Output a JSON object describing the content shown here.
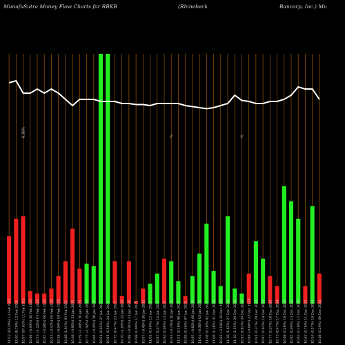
{
  "header": {
    "brand": "MunafaSutra  Money Flow  Charts for RBKB",
    "company_left": "(Rhinebeck",
    "company_right": "Bancorp,  Inc.) Mu"
  },
  "colors": {
    "background": "#000000",
    "gridline": "#a0560a",
    "up_bar": "#22ee22",
    "down_bar": "#ee2020",
    "price_line": "#ffffff",
    "text": "#cfcfcf"
  },
  "chart_data": {
    "type": "bar",
    "overlay": "line",
    "ylim": [
      0,
      100
    ],
    "price_ylim": [
      0,
      100
    ],
    "grid": "vertical",
    "categories": [
      "11.03 (10.29%) 13 Feb 2025",
      "12.00 (8.79%) 12 Feb 2025",
      "10.97 (97.93%) 11 Feb 2025",
      "10.66 (-0.93%) 10 Feb 2025",
      "10.53 (-1.12%) 07 Feb 2025",
      "10.65 (-0.28%) 06 Feb 2025",
      "10.53 (-0.47%) 05 Feb 2025",
      "10.58 (-0.94%) 04 Feb 2025",
      "10.68 (1.91%) 03 Feb 2025",
      "10.48 (-0.95%) 31 Jan 2025",
      "10.59 (-1.49%) 30 Jan 2025",
      "10.75 (-1.92%) 29 Jan 2025",
      "10.96 (-0.45%) 28 Jan 2025",
      "10.91 (0.92%) 27 Jan 2025",
      "10.81 (0.56%) 24 Jan 2025",
      "10.75 (0.47%) 23 Jan 2025",
      "10.70 (-1.65%) 22 Jan 2025",
      "10.88 (-0.91%) 21 Jan 2025",
      "10.98 (0.09%) 17 Jan 2025",
      "10.97 (-0.45%) 16 Jan 2025",
      "11.02 (0.46%) 15 Jan 2025",
      "10.97 (0.27%) 14 Jan 2025",
      "10.94 (0.09%) 13 Jan 2025",
      "10.93 (-0.73%) 10 Jan 2025",
      "11.01 (0.18%) 08 Jan 2025",
      "10.99 (0.36%) 07 Jan 2025",
      "10.95 (-0.82%) 06 Jan 2025",
      "11.04 (-0.36%) 03 Jan 2025",
      "11.08 (0.18%) 02 Jan 2025",
      "11.06 (1.28%) 31 Dec 2024",
      "10.92 (-3.19%) 30 Dec 2024",
      "11.28 (1.62%) 27 Dec 2024",
      "11.10 (1.55%) 26 Dec 2024",
      "10.93 (0.83%) 24 Dec 2024",
      "10.84 (-0.64%) 23 Dec 2024",
      "10.91 (0.37%) 20 Dec 2024",
      "10.87 (0.93%) 19 Dec 2024",
      "10.77 (0.37%) 18 Dec 2024",
      "10.73 (0.47%) 17 Dec 2024",
      "10.68 (0.28%) 16 Dec 2024",
      "10.65 (0.09%) 13 Dec 2024",
      "10.64 (0.19%) 12 Dec 2024",
      "10.62 (0.76%) 11 Dec 2024",
      "10.54 (0.57%) 10 Dec 2024",
      "10.48 (0.29%) 09 Dec 2024"
    ],
    "series": [
      {
        "values": [
          27,
          34,
          35,
          5,
          4,
          4,
          6,
          11,
          17,
          30,
          14,
          16,
          15,
          100,
          100,
          17,
          3,
          17,
          1,
          6,
          8,
          12,
          18,
          17,
          9,
          3,
          11,
          20,
          32,
          13,
          7,
          35,
          6,
          4,
          12,
          25,
          18,
          11,
          7,
          47,
          41,
          34,
          7,
          39,
          12
        ],
        "direction": [
          "down",
          "down",
          "down",
          "down",
          "down",
          "down",
          "down",
          "down",
          "down",
          "down",
          "down",
          "up",
          "up",
          "up",
          "up",
          "down",
          "down",
          "down",
          "down",
          "down",
          "up",
          "up",
          "down",
          "up",
          "up",
          "down",
          "up",
          "up",
          "up",
          "up",
          "up",
          "up",
          "up",
          "up",
          "down",
          "up",
          "up",
          "down",
          "down",
          "up",
          "up",
          "up",
          "down",
          "up",
          "down"
        ]
      }
    ],
    "price_line": [
      60,
      61,
      55,
      55,
      57,
      55,
      57,
      55,
      52,
      49,
      52,
      52,
      52,
      51,
      51,
      51,
      50,
      50,
      49.5,
      49.5,
      49,
      50,
      50,
      50,
      50,
      49,
      48.5,
      48,
      47.5,
      48,
      49,
      50,
      54,
      51.5,
      51,
      50,
      50,
      51,
      51,
      52,
      54,
      58,
      57,
      57,
      52
    ],
    "annotations": [
      "6.36%",
      "%",
      "%"
    ]
  }
}
